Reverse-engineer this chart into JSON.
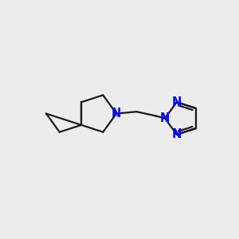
{
  "bg_color": "#ececec",
  "bond_color": "#1a1a1a",
  "n_color": "#0000ff",
  "bond_width": 1.6,
  "font_size": 10.5,
  "fig_size": [
    3.0,
    3.0
  ],
  "dpi": 100,
  "xlim": [
    0,
    10
  ],
  "ylim": [
    0,
    10
  ]
}
